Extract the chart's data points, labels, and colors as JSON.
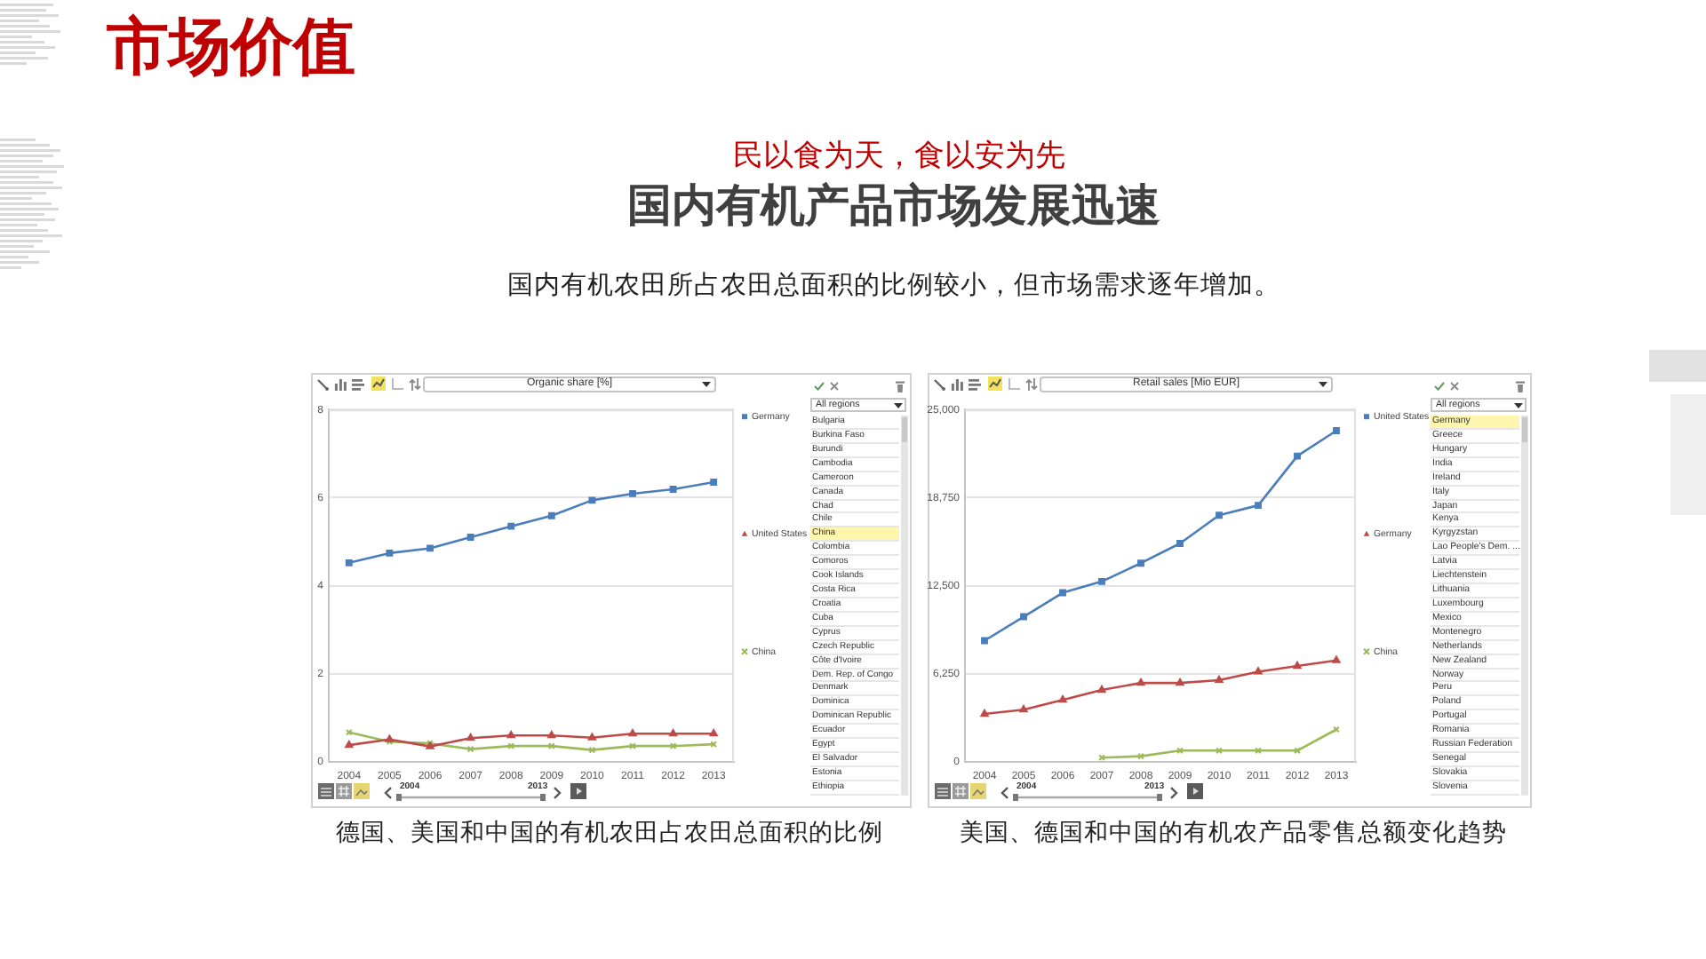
{
  "chart_data": [
    {
      "type": "other",
      "title": "市场价值",
      "subtitle": "民以食为天，食以安为先",
      "annotations": [
        "国内有机产品市场发展迅速",
        "国内有机农田所占农田总面积的比例较小，但市场需求逐年增加。"
      ]
    },
    {
      "type": "line",
      "title": "Organic share [%]",
      "categories": [
        "2004",
        "2005",
        "2006",
        "2007",
        "2008",
        "2009",
        "2010",
        "2011",
        "2012",
        "2013"
      ],
      "ylim": [
        0,
        8
      ],
      "yticks": [
        0,
        2,
        4,
        6,
        8
      ],
      "grid": "y",
      "legend": "right",
      "series": [
        {
          "name": "Germany",
          "color": "#4a7ebb",
          "marker": "square",
          "values": [
            4.52,
            4.74,
            4.85,
            5.1,
            5.35,
            5.59,
            5.94,
            6.09,
            6.19,
            6.35
          ]
        },
        {
          "name": "United States",
          "color": "#be4b48",
          "marker": "triangle",
          "values": [
            0.38,
            0.51,
            0.35,
            0.54,
            0.6,
            0.6,
            0.55,
            0.64,
            0.64,
            0.64
          ]
        },
        {
          "name": "China",
          "color": "#9bbb59",
          "marker": "cross",
          "values": [
            0.67,
            0.46,
            0.42,
            0.29,
            0.36,
            0.36,
            0.27,
            0.36,
            0.36,
            0.4
          ]
        }
      ],
      "annotations": [
        "2004",
        "2013",
        "德国、美国和中国的有机农田占农田总面积的比例"
      ]
    },
    {
      "type": "other",
      "title": "All regions",
      "annotations": [
        "Bulgaria",
        "Burkina Faso",
        "Burundi",
        "Cambodia",
        "Cameroon",
        "Canada",
        "Chad",
        "Chile",
        "China",
        "Colombia",
        "Comoros",
        "Cook Islands",
        "Costa Rica",
        "Croatia",
        "Cuba",
        "Cyprus",
        "Czech Republic",
        "Côte d'Ivoire",
        "Dem. Rep. of Congo",
        "Denmark",
        "Dominica",
        "Dominican Republic",
        "Ecuador",
        "Egypt",
        "El Salvador",
        "Estonia",
        "Ethiopia"
      ]
    },
    {
      "type": "line",
      "title": "Retail sales [Mio EUR]",
      "categories": [
        "2004",
        "2005",
        "2006",
        "2007",
        "2008",
        "2009",
        "2010",
        "2011",
        "2012",
        "2013"
      ],
      "ylim": [
        0,
        25000
      ],
      "yticks": [
        0,
        {
          "value": 6250,
          "label": "6,250"
        },
        {
          "value": 12500,
          "label": "12,500"
        },
        {
          "value": 18750,
          "label": "18,750"
        },
        {
          "value": 25000,
          "label": "25,000"
        }
      ],
      "grid": "y",
      "legend": "right",
      "series": [
        {
          "name": "United States",
          "color": "#4a7ebb",
          "marker": "square",
          "values": [
            8600,
            10300,
            12000,
            12800,
            14100,
            15500,
            17500,
            18200,
            21700,
            23500
          ]
        },
        {
          "name": "Germany",
          "color": "#be4b48",
          "marker": "triangle",
          "values": [
            3400,
            3700,
            4400,
            5100,
            5600,
            5600,
            5800,
            6400,
            6800,
            7200
          ]
        },
        {
          "name": "China",
          "color": "#9bbb59",
          "marker": "cross",
          "values": [
            null,
            null,
            null,
            300,
            400,
            800,
            800,
            800,
            800,
            2300
          ]
        }
      ],
      "annotations": [
        "2004",
        "2013",
        "美国、德国和中国的有机农产品零售总额变化趋势"
      ]
    },
    {
      "type": "other",
      "title": "All regions",
      "annotations": [
        "Germany",
        "Greece",
        "Hungary",
        "India",
        "Ireland",
        "Italy",
        "Japan",
        "Kenya",
        "Kyrgyzstan",
        "Lao People's Dem. ...",
        "Latvia",
        "Liechtenstein",
        "Lithuania",
        "Luxembourg",
        "Mexico",
        "Montenegro",
        "Netherlands",
        "New Zealand",
        "Norway",
        "Peru",
        "Poland",
        "Portugal",
        "Romania",
        "Russian Federation",
        "Senegal",
        "Slovakia",
        "Slovenia"
      ]
    }
  ]
}
